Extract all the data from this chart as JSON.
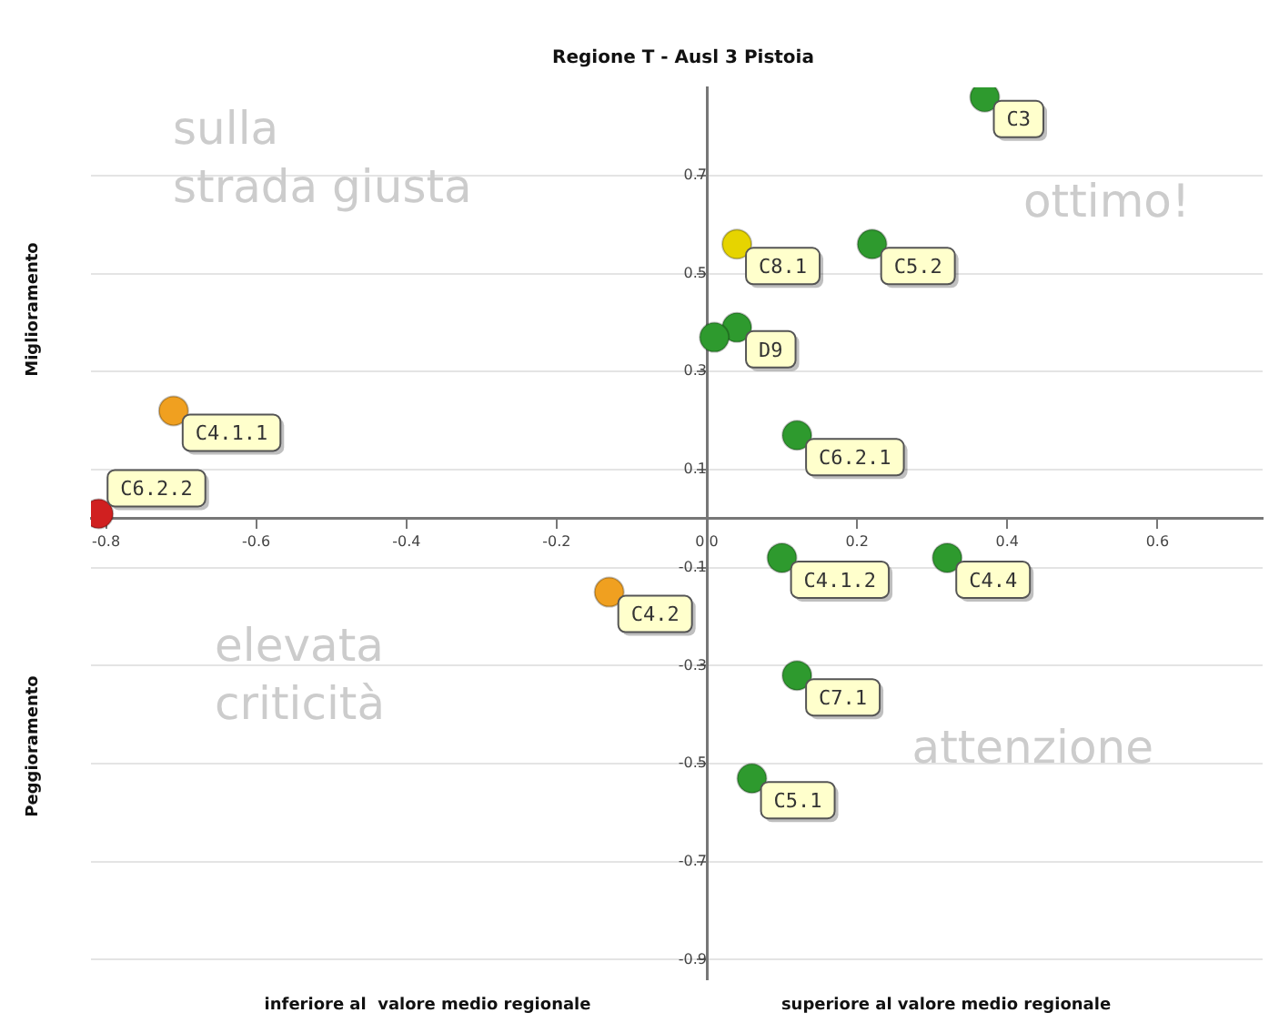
{
  "chart_data": {
    "type": "scatter",
    "title": "Regione T - Ausl 3 Pistoia",
    "xlim": [
      -0.82,
      0.74
    ],
    "ylim": [
      -0.94,
      0.88
    ],
    "xticks": [
      -0.8,
      -0.6,
      -0.4,
      -0.2,
      {
        "value": 0,
        "label": "0.0"
      },
      0.2,
      0.4,
      0.6
    ],
    "yticks": [
      -0.9,
      -0.7,
      -0.5,
      -0.3,
      -0.1,
      0.1,
      0.3,
      0.5,
      0.7
    ],
    "grid": "y",
    "legend": false,
    "marker": "circle",
    "annotations": [
      "sulla\nstrada giusta",
      "ottimo!",
      "elevata\ncriticità",
      "attenzione",
      "Miglioramento",
      "Peggioramento",
      "inferiore al  valore medio regionale",
      "superiore al valore medio regionale"
    ],
    "series": [
      {
        "name": "C3",
        "color": "#2e9a2e",
        "x": [
          0.37
        ],
        "values": [
          0.86
        ]
      },
      {
        "name": "C8.1",
        "color": "#e6d400",
        "x": [
          0.04
        ],
        "values": [
          0.56
        ]
      },
      {
        "name": "C5.2",
        "color": "#2e9a2e",
        "x": [
          0.22
        ],
        "values": [
          0.56
        ]
      },
      {
        "color": "#2e9a2e",
        "x": [
          0.01
        ],
        "values": [
          0.37
        ]
      },
      {
        "name": "D9",
        "color": "#2e9a2e",
        "x": [
          0.04
        ],
        "values": [
          0.39
        ]
      },
      {
        "name": "C6.2.1",
        "color": "#2e9a2e",
        "x": [
          0.12
        ],
        "values": [
          0.17
        ]
      },
      {
        "name": "C4.1.1",
        "color": "#f0a020",
        "x": [
          -0.71
        ],
        "values": [
          0.22
        ]
      },
      {
        "name": "C6.2.2",
        "color": "#d02020",
        "x": [
          -0.81
        ],
        "values": [
          0.01
        ]
      },
      {
        "name": "C4.2",
        "color": "#f0a020",
        "x": [
          -0.13
        ],
        "values": [
          -0.15
        ]
      },
      {
        "name": "C4.1.2",
        "color": "#2e9a2e",
        "x": [
          0.1
        ],
        "values": [
          -0.08
        ]
      },
      {
        "name": "C4.4",
        "color": "#2e9a2e",
        "x": [
          0.32
        ],
        "values": [
          -0.08
        ]
      },
      {
        "name": "C7.1",
        "color": "#2e9a2e",
        "x": [
          0.12
        ],
        "values": [
          -0.32
        ]
      },
      {
        "name": "C5.1",
        "color": "#2e9a2e",
        "x": [
          0.06
        ],
        "values": [
          -0.53
        ]
      }
    ]
  }
}
